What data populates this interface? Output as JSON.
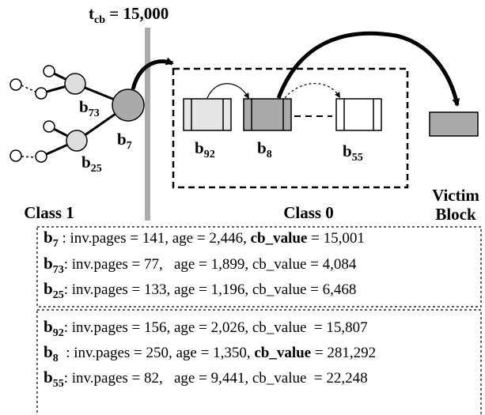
{
  "threshold": {
    "base": "t",
    "sub": "cb",
    "text": " = 15,000"
  },
  "class1": {
    "label": "Class 1",
    "nodes": [
      {
        "base": "b",
        "sub": "73"
      },
      {
        "base": "b",
        "sub": "7"
      },
      {
        "base": "b",
        "sub": "25"
      }
    ]
  },
  "class0": {
    "label": "Class 0",
    "blocks": [
      {
        "base": "b",
        "sub": "92"
      },
      {
        "base": "b",
        "sub": "8"
      },
      {
        "base": "b",
        "sub": "55"
      }
    ]
  },
  "victim": {
    "lines": [
      "Victim",
      "Block"
    ]
  },
  "panels": [
    {
      "rows": [
        {
          "base": "b",
          "sub": "7",
          "text": " : inv.pages = 141, age = 2,446, ",
          "key": "cb_value",
          "bold": true,
          "tail": " = 15,001"
        },
        {
          "base": "b",
          "sub": "73",
          "text": ": inv.pages = 77,   age = 1,899, ",
          "key": "cb_value",
          "bold": false,
          "tail": " = 4,084"
        },
        {
          "base": "b",
          "sub": "25",
          "text": ": inv.pages = 133, age = 1,196, ",
          "key": "cb_value",
          "bold": false,
          "tail": " = 6,468"
        }
      ]
    },
    {
      "rows": [
        {
          "base": "b",
          "sub": "92",
          "text": ": inv.pages = 156, age = 2,026, ",
          "key": "cb_value",
          "bold": false,
          "tail": "  = 15,807"
        },
        {
          "base": "b",
          "sub": "8",
          "text": "  : inv.pages = 250, age = 1,350, ",
          "key": "cb_value",
          "bold": true,
          "tail": " = 281,292"
        },
        {
          "base": "b",
          "sub": "55",
          "text": ": inv.pages = 82,   age = 9,441, ",
          "key": "cb_value",
          "bold": false,
          "tail": "  = 22,248"
        }
      ]
    }
  ]
}
